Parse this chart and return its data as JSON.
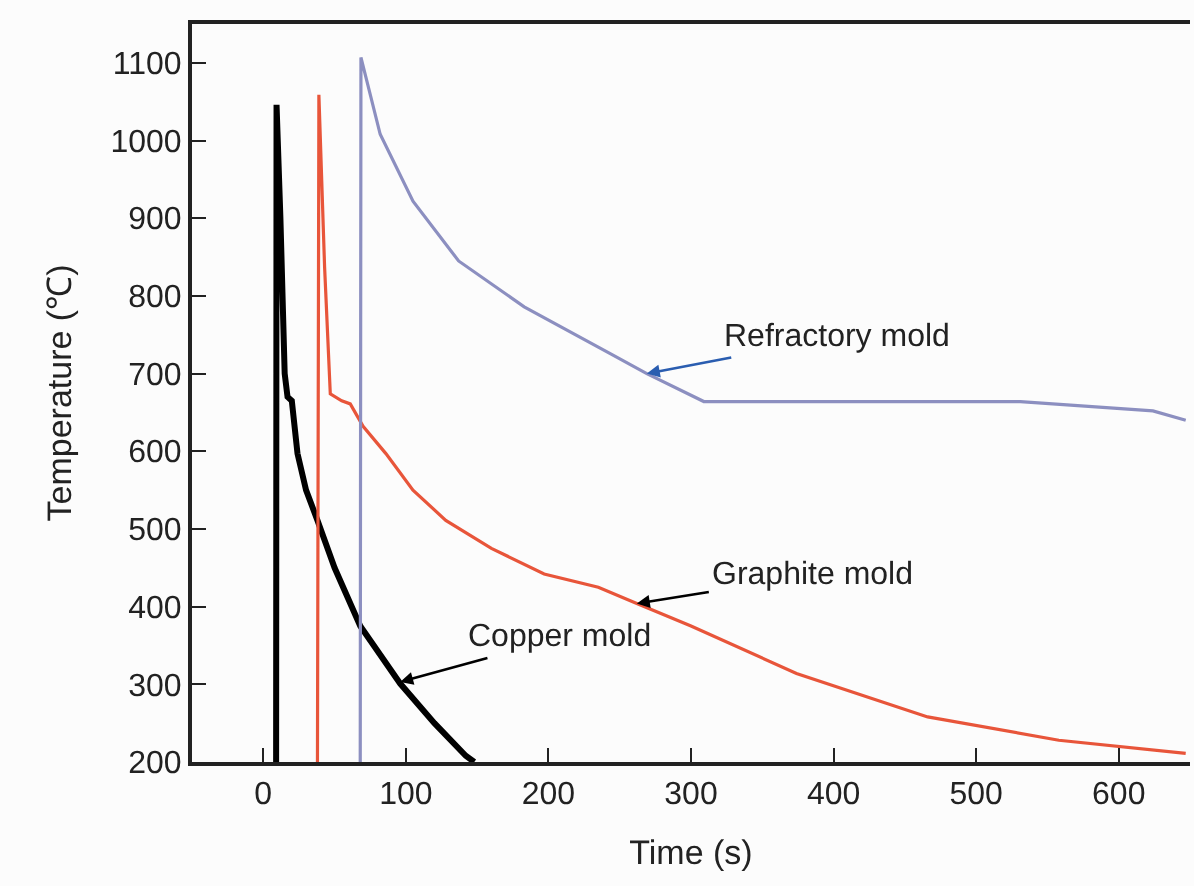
{
  "chart_data": {
    "type": "line",
    "xlabel": "Time (s)",
    "ylabel": "Temperature (℃)",
    "xlim": [
      -50,
      650
    ],
    "xticks": [
      0,
      100,
      200,
      300,
      400,
      500,
      600
    ],
    "ylim": [
      200,
      1150
    ],
    "yticks": [
      200,
      300,
      400,
      500,
      600,
      700,
      800,
      900,
      1000,
      1100
    ],
    "marker": "none",
    "line_style": "solid",
    "series": [
      {
        "color": "#000000",
        "x": [
          9,
          9.3,
          12,
          15,
          17,
          20,
          24,
          30,
          38,
          50,
          68,
          96,
          120,
          142,
          148
        ],
        "values": [
          200,
          1046,
          900,
          700,
          670,
          665,
          597,
          550,
          511,
          450,
          375,
          301,
          250,
          208,
          200
        ]
      },
      {
        "color": "#e8553a",
        "x": [
          38,
          39,
          43,
          47,
          55,
          61,
          70,
          86,
          105,
          128,
          160,
          197,
          235,
          262,
          300,
          374,
          466,
          558,
          647
        ],
        "values": [
          200,
          1059,
          837,
          674,
          665,
          661,
          632,
          597,
          550,
          511,
          475,
          442,
          425,
          404,
          375,
          314,
          258,
          228,
          211
        ]
      },
      {
        "color": "#8c8fc0",
        "x": [
          68,
          68.5,
          82,
          105,
          137,
          183,
          244,
          269,
          309,
          398,
          531,
          624,
          647
        ],
        "values": [
          200,
          1107,
          1008,
          922,
          845,
          786,
          725,
          700,
          664,
          664,
          664,
          652,
          640
        ]
      }
    ],
    "annotations": [
      {
        "text": "Refractory mold",
        "x": 269,
        "y": 700
      },
      {
        "text": "Graphite mold",
        "x": 262,
        "y": 404
      },
      {
        "text": "Copper mold",
        "x": 96,
        "y": 303
      }
    ]
  }
}
